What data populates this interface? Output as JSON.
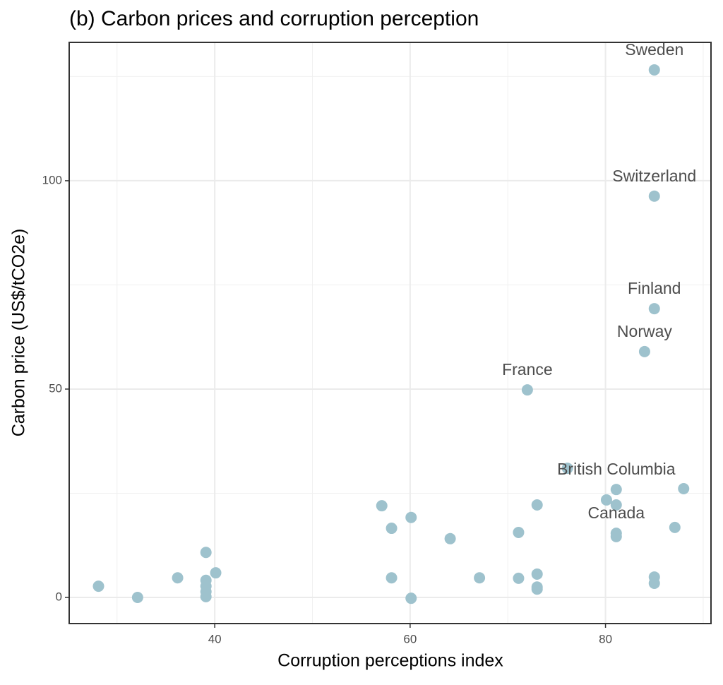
{
  "chart_data": {
    "type": "scatter",
    "title": "(b) Carbon prices and corruption perception",
    "x_label": "Corruption perceptions index",
    "y_label": "Carbon price (US$/tCO2e)",
    "x": [
      28.1,
      32.1,
      36.2,
      39.1,
      39.1,
      39.1,
      39.1,
      39.1,
      40.1,
      57.1,
      58.1,
      58.1,
      60.1,
      60.1,
      64.1,
      67.1,
      71.1,
      71.1,
      73.0,
      73.0,
      73.0,
      73.0,
      72.0,
      76.1,
      80.1,
      81.1,
      81.1,
      81.1,
      81.1,
      84.0,
      85.0,
      85.0,
      85.0,
      85.0,
      85.0,
      87.1,
      88.0
    ],
    "values": [
      2.7,
      0,
      4.7,
      10.8,
      4.1,
      2.7,
      1.4,
      0.2,
      5.9,
      22,
      16.6,
      4.7,
      19.2,
      -0.2,
      14.1,
      4.7,
      15.6,
      4.6,
      22.2,
      5.6,
      2.5,
      2.0,
      49.8,
      31.0,
      23.4,
      25.9,
      22.2,
      15.4,
      14.6,
      59,
      69.3,
      96.3,
      126.6,
      4.9,
      3.4,
      16.8,
      26.1
    ],
    "labels": [
      null,
      null,
      null,
      null,
      null,
      null,
      null,
      null,
      null,
      null,
      null,
      null,
      null,
      null,
      null,
      null,
      null,
      null,
      null,
      null,
      null,
      null,
      "France",
      null,
      null,
      "British Columbia",
      null,
      "Canada",
      null,
      "Norway",
      "Finland",
      "Switzerland",
      "Sweden",
      null,
      null,
      null,
      null
    ],
    "color": "#9ec2cd",
    "xlim": [
      25.1,
      90.8
    ],
    "ylim": [
      -6.27,
      133.2
    ],
    "xticks": [
      40,
      60,
      80
    ],
    "yticks": [
      0,
      50,
      100
    ],
    "x_minor_grid": [
      30,
      50,
      70,
      90
    ],
    "y_minor_grid": [
      25,
      75,
      125
    ],
    "grid": true
  }
}
